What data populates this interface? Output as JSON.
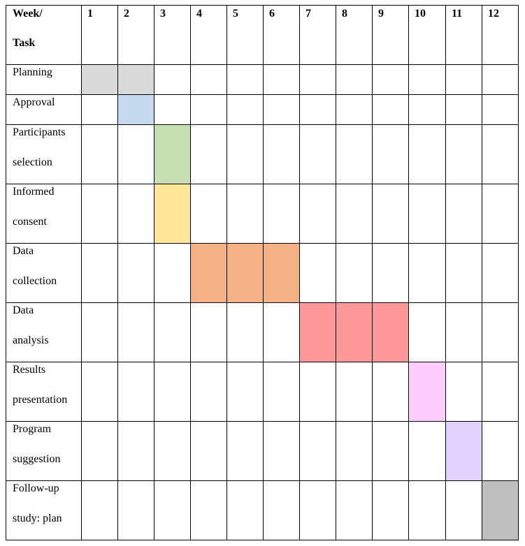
{
  "table": {
    "header": {
      "line1": "Week/",
      "line2": "Task"
    },
    "weeks": [
      "1",
      "2",
      "3",
      "4",
      "5",
      "6",
      "7",
      "8",
      "9",
      "10",
      "11",
      "12"
    ],
    "tasks": [
      {
        "lines": [
          "Planning"
        ],
        "weeks": [
          1,
          2
        ],
        "color": "#d9d9d9"
      },
      {
        "lines": [
          "Approval"
        ],
        "weeks": [
          2
        ],
        "color": "#c5d9f1"
      },
      {
        "lines": [
          "Participants",
          "selection"
        ],
        "weeks": [
          3
        ],
        "color": "#c6e0b4"
      },
      {
        "lines": [
          "Informed",
          "consent"
        ],
        "weeks": [
          3
        ],
        "color": "#ffe699"
      },
      {
        "lines": [
          "Data",
          "collection"
        ],
        "weeks": [
          4,
          5,
          6
        ],
        "color": "#f4b183"
      },
      {
        "lines": [
          "Data",
          "analysis"
        ],
        "weeks": [
          7,
          8,
          9
        ],
        "color": "#ff9999"
      },
      {
        "lines": [
          "Results",
          "presentation"
        ],
        "weeks": [
          10
        ],
        "color": "#ffccff"
      },
      {
        "lines": [
          "Program",
          "suggestion"
        ],
        "weeks": [
          11
        ],
        "color": "#e0d1ff"
      },
      {
        "lines": [
          "Follow-up",
          "study: plan"
        ],
        "weeks": [
          12
        ],
        "color": "#bfbfbf"
      }
    ]
  }
}
